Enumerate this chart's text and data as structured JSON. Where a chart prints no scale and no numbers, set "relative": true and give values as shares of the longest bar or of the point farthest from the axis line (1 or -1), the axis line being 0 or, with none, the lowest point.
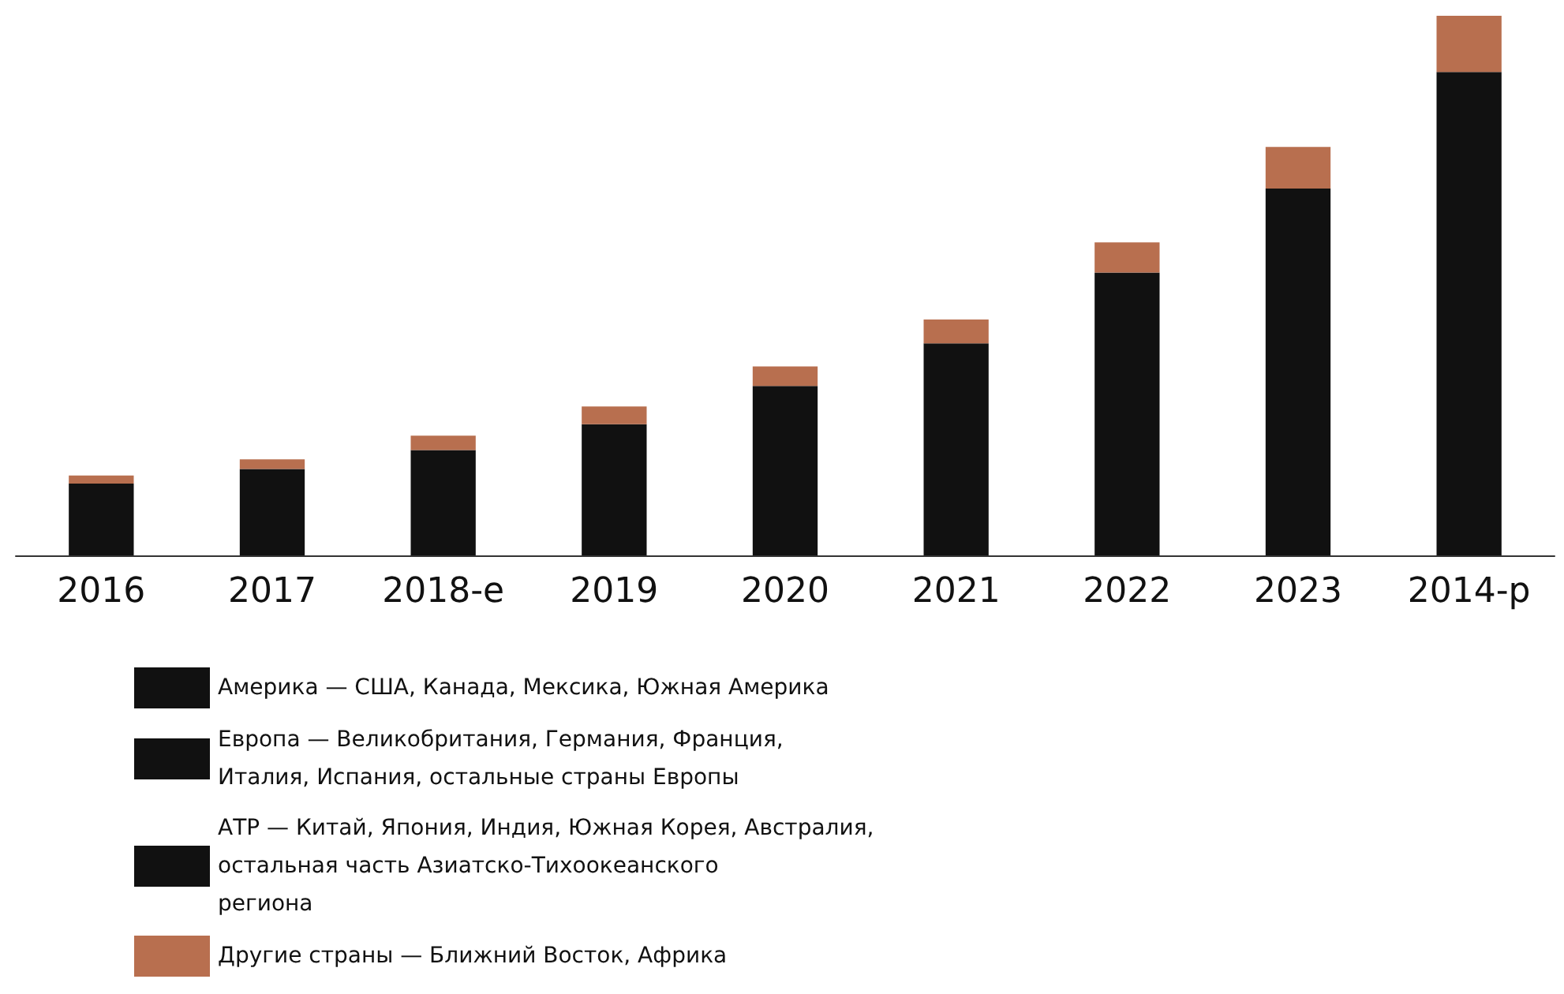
{
  "chart_data": {
    "type": "bar",
    "stacked": true,
    "relative": true,
    "legend": "bottom",
    "categories": [
      "2016",
      "2017",
      "2018-e",
      "2019",
      "2020",
      "2021",
      "2022",
      "2023",
      "2014-p"
    ],
    "series": [
      {
        "name": "Америка — США, Канада, Мексика, Южная Америка",
        "color": "#111111",
        "values": [
          0.133,
          0.16,
          0.195,
          0.243,
          0.314,
          0.393,
          0.524,
          0.68,
          0.896
        ]
      },
      {
        "name": "Европа — Великобритания, Германия, Франция, Италия, Испания, остальные страны Европы",
        "color": "#111111",
        "values": [
          null,
          null,
          null,
          null,
          null,
          null,
          null,
          null,
          null
        ]
      },
      {
        "name": "АТР — Китай, Япония, Индия, Южная Корея, Австралия, остальная часть Азиатско-Тихоокеанского региона",
        "color": "#111111",
        "values": [
          null,
          null,
          null,
          null,
          null,
          null,
          null,
          null,
          null
        ]
      },
      {
        "name": "Другие страны — Ближний Восток, Африка",
        "color": "#b86f4f",
        "values": [
          0.015,
          0.018,
          0.027,
          0.033,
          0.036,
          0.044,
          0.056,
          0.077,
          0.104
        ]
      }
    ]
  }
}
